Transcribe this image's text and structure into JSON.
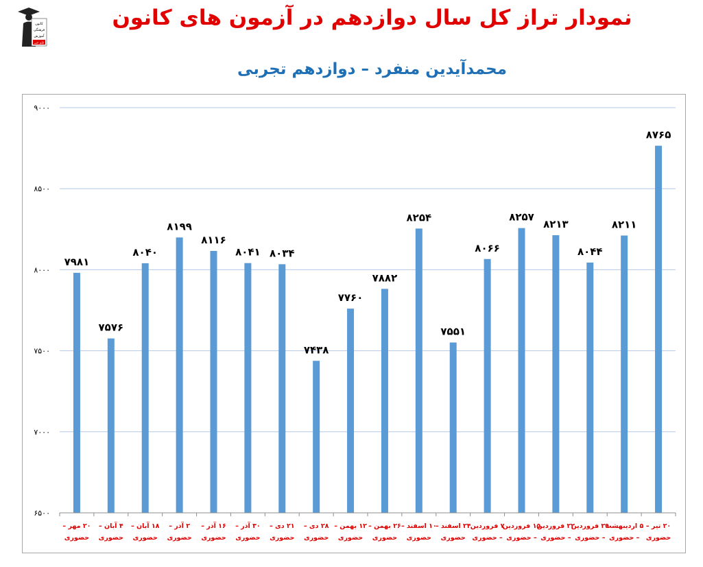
{
  "title": "نمودار تراز کل سال دوازدهم در آزمون های کانون",
  "subtitle": "محمدآیدین منفرد – دوازدهم تجربی",
  "logo": {
    "text_lines": [
      "کانون",
      "فرهنگی",
      "آموزش",
      "قلم چی"
    ]
  },
  "colors": {
    "bar": "#5b9bd5",
    "title": "#e00000",
    "subtitle": "#1f6fb5",
    "category_text": "#e00000",
    "grid": "#b4c7e7"
  },
  "chart_data": {
    "type": "bar",
    "title": "نمودار تراز کل سال دوازدهم در آزمون های کانون",
    "subtitle": "محمدآیدین منفرد – دوازدهم تجربی",
    "xlabel": "",
    "ylabel": "",
    "ylim": [
      6500,
      9000
    ],
    "yticks": [
      6500,
      7000,
      7500,
      8000,
      8500,
      9000
    ],
    "ytick_labels": [
      "۶۵۰۰",
      "۷۰۰۰",
      "۷۵۰۰",
      "۸۰۰۰",
      "۸۵۰۰",
      "۹۰۰۰"
    ],
    "grid": true,
    "legend": "none",
    "categories": [
      [
        "۲۰ مهر –",
        "حضوری"
      ],
      [
        "۴ آبان –",
        "حضوری"
      ],
      [
        "۱۸ آبان –",
        "حضوری"
      ],
      [
        "۲ آذر –",
        "حضوری"
      ],
      [
        "۱۶ آذر –",
        "حضوری"
      ],
      [
        "۳۰ آذر –",
        "حضوری"
      ],
      [
        "۲۱ دی –",
        "حضوری"
      ],
      [
        "۲۸ دی –",
        "حضوری"
      ],
      [
        "۱۲ بهمن –",
        "حضوری"
      ],
      [
        "۲۶ بهمن –",
        "حضوری"
      ],
      [
        "۱۰ اسفند –",
        "حضوری"
      ],
      [
        "۲۴ اسفند –",
        "حضوری"
      ],
      [
        "۷ فروردین",
        "– حضوری"
      ],
      [
        "۱۵ فروردین",
        "– حضوری"
      ],
      [
        "۲۲ فروردین",
        "– حضوری"
      ],
      [
        "۲۹ فروردین",
        "– حضوری"
      ],
      [
        "۵ اردیبهشت",
        "– حضوری"
      ],
      [
        "۲۰ تیر –",
        "حضوری"
      ]
    ],
    "values": [
      7981,
      7576,
      8040,
      8199,
      8116,
      8041,
      8034,
      7438,
      7760,
      7882,
      8254,
      7551,
      8066,
      8257,
      8213,
      8044,
      8211,
      8765
    ],
    "value_labels": [
      "۷۹۸۱",
      "۷۵۷۶",
      "۸۰۴۰",
      "۸۱۹۹",
      "۸۱۱۶",
      "۸۰۴۱",
      "۸۰۳۴",
      "۷۴۳۸",
      "۷۷۶۰",
      "۷۸۸۲",
      "۸۲۵۴",
      "۷۵۵۱",
      "۸۰۶۶",
      "۸۲۵۷",
      "۸۲۱۳",
      "۸۰۴۴",
      "۸۲۱۱",
      "۸۷۶۵"
    ]
  }
}
